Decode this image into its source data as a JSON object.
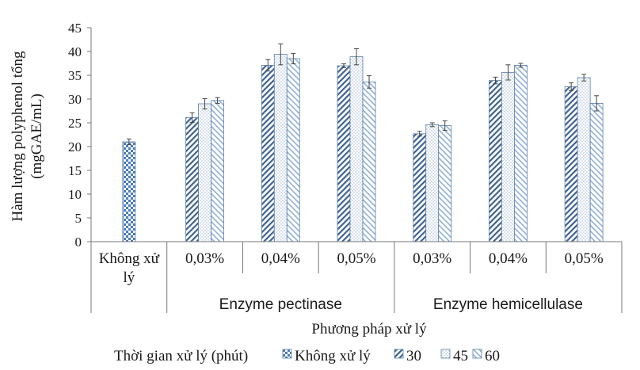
{
  "chart_data": {
    "type": "bar",
    "ylabel_line1": "Hàm lượng polyphenol tổng",
    "ylabel_line2": "(mgGAE/mL)",
    "xlabel": "Phương pháp xử lý",
    "ylim": [
      0,
      45
    ],
    "yticks": [
      0,
      5,
      10,
      15,
      20,
      25,
      30,
      35,
      40,
      45
    ],
    "grid": false,
    "legend_title": "Thời gian xử lý (phút)",
    "legend_position": "bottom",
    "groups": [
      {
        "label": "",
        "span": [
          0,
          0
        ]
      },
      {
        "label": "Enzyme pectinase",
        "span": [
          1,
          3
        ]
      },
      {
        "label": "Enzyme hemicellulase",
        "span": [
          4,
          6
        ]
      }
    ],
    "categories": [
      {
        "line1": "Không xử",
        "line2": "lý"
      },
      {
        "line1": "0,03%",
        "line2": ""
      },
      {
        "line1": "0,04%",
        "line2": ""
      },
      {
        "line1": "0,05%",
        "line2": ""
      },
      {
        "line1": "0,03%",
        "line2": ""
      },
      {
        "line1": "0,04%",
        "line2": ""
      },
      {
        "line1": "0,05%",
        "line2": ""
      }
    ],
    "series": [
      {
        "name": "Không xử lý",
        "pattern": "checker",
        "color": "#4a7bbf",
        "values": [
          21.0,
          null,
          null,
          null,
          null,
          null,
          null
        ],
        "errors": [
          0.6,
          null,
          null,
          null,
          null,
          null,
          null
        ]
      },
      {
        "name": "30",
        "pattern": "diagonal",
        "color": "#3f6390",
        "values": [
          null,
          26.1,
          37.1,
          37.0,
          22.7,
          33.9,
          32.6
        ],
        "errors": [
          null,
          1.0,
          1.2,
          0.4,
          0.5,
          0.7,
          0.8
        ]
      },
      {
        "name": "45",
        "pattern": "dots",
        "color": "#8aa6c8",
        "values": [
          null,
          29.0,
          39.4,
          38.9,
          24.6,
          35.6,
          34.5
        ],
        "errors": [
          null,
          1.1,
          2.2,
          1.7,
          0.4,
          1.6,
          0.7
        ]
      },
      {
        "name": "60",
        "pattern": "diag-light",
        "color": "#7ea2c9",
        "values": [
          null,
          29.7,
          38.5,
          33.6,
          24.4,
          37.1,
          29.1
        ],
        "errors": [
          null,
          0.6,
          1.1,
          1.3,
          1.0,
          0.4,
          1.6
        ]
      }
    ]
  }
}
